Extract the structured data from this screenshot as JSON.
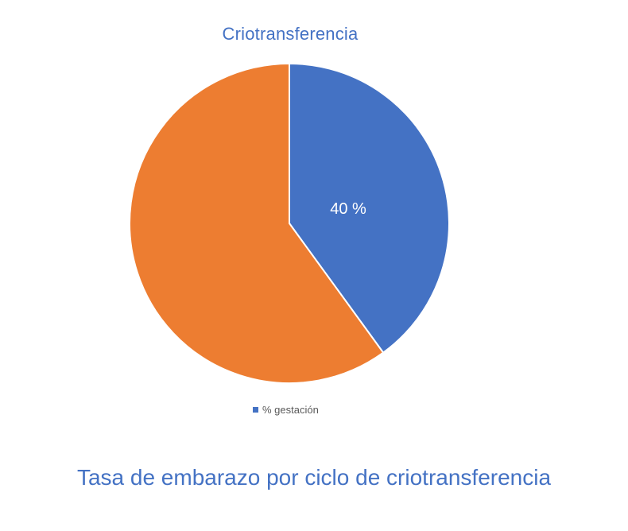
{
  "chart": {
    "title": "Criotransferencia",
    "data_label": "40 %",
    "legend": [
      {
        "label": "% gestación",
        "color": "#4472c4"
      }
    ],
    "colors": {
      "slice_1": "#4472c4",
      "slice_2": "#ed7d31",
      "title": "#4472c4",
      "legend_text": "#595959"
    }
  },
  "caption": "Tasa de embarazo por ciclo de criotransferencia",
  "chart_data": {
    "type": "pie",
    "title": "Criotransferencia",
    "categories": [
      "% gestación",
      ""
    ],
    "values": [
      40,
      60
    ],
    "colors": [
      "#4472c4",
      "#ed7d31"
    ],
    "data_labels": [
      "40 %",
      ""
    ],
    "legend": {
      "entries": [
        "% gestación"
      ],
      "position": "bottom"
    },
    "caption": "Tasa de embarazo por ciclo de criotransferencia"
  }
}
